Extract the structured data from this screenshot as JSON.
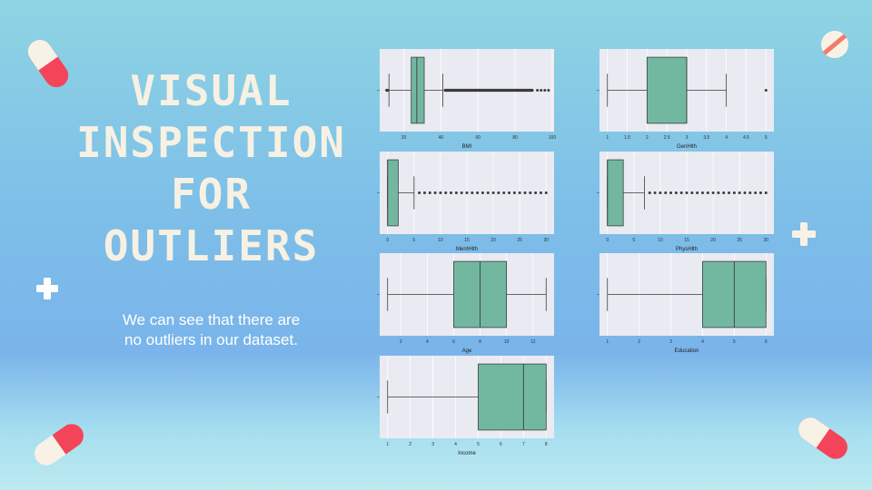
{
  "slide": {
    "title_lines": [
      "VISUAL",
      "INSPECTION",
      "FOR",
      "OUTLIERS"
    ],
    "subtitle_lines": [
      "We can see that there are",
      "no outliers in our dataset."
    ]
  },
  "colors": {
    "box_fill": "#72b8a0",
    "plot_bg": "#eaeaf2",
    "grid": "#ffffff",
    "line": "#3d3d3d"
  },
  "chart_data": [
    {
      "type": "box",
      "xlabel": "BMI",
      "xlim": [
        7,
        101
      ],
      "ticks": [
        20,
        40,
        60,
        80,
        100
      ],
      "whisker_low": 12,
      "q1": 24,
      "median": 27,
      "q3": 31,
      "whisker_high": 41,
      "outliers_dense": [
        41.5,
        90
      ],
      "outliers": [
        [
          10,
          12
        ],
        92,
        94,
        96,
        98
      ]
    },
    {
      "type": "box",
      "xlabel": "GenHlth",
      "xlim": [
        0.8,
        5.2
      ],
      "ticks": [
        1.0,
        1.5,
        2.0,
        2.5,
        3.0,
        3.5,
        4.0,
        4.5,
        5.0
      ],
      "whisker_low": 1,
      "q1": 2,
      "median": 3,
      "q3": 3,
      "whisker_high": 4,
      "outliers": [
        5
      ]
    },
    {
      "type": "box",
      "xlabel": "MentHlth",
      "xlim": [
        -1.5,
        31.5
      ],
      "ticks": [
        0,
        5,
        10,
        15,
        20,
        25,
        30
      ],
      "whisker_low": 0,
      "q1": 0,
      "median": 0,
      "q3": 2,
      "whisker_high": 5,
      "outliers": [
        6,
        7,
        8,
        9,
        10,
        11,
        12,
        13,
        14,
        15,
        16,
        17,
        18,
        19,
        20,
        21,
        22,
        23,
        24,
        25,
        26,
        27,
        28,
        29,
        30
      ]
    },
    {
      "type": "box",
      "xlabel": "PhysHlth",
      "xlim": [
        -1.5,
        31.5
      ],
      "ticks": [
        0,
        5,
        10,
        15,
        20,
        25,
        30
      ],
      "whisker_low": 0,
      "q1": 0,
      "median": 0,
      "q3": 3,
      "whisker_high": 7,
      "outliers": [
        8,
        9,
        10,
        11,
        12,
        13,
        14,
        15,
        16,
        17,
        18,
        19,
        20,
        21,
        22,
        23,
        24,
        25,
        26,
        27,
        28,
        29,
        30
      ]
    },
    {
      "type": "box",
      "xlabel": "Age",
      "xlim": [
        0.4,
        13.6
      ],
      "ticks": [
        2,
        4,
        6,
        8,
        10,
        12
      ],
      "whisker_low": 1,
      "q1": 6,
      "median": 8,
      "q3": 10,
      "whisker_high": 13,
      "outliers": []
    },
    {
      "type": "box",
      "xlabel": "Education",
      "xlim": [
        0.75,
        6.25
      ],
      "ticks": [
        1,
        2,
        3,
        4,
        5,
        6
      ],
      "whisker_low": 1,
      "q1": 4,
      "median": 5,
      "q3": 6,
      "whisker_high": 6,
      "outliers": []
    },
    {
      "type": "box",
      "xlabel": "Income",
      "xlim": [
        0.65,
        8.35
      ],
      "ticks": [
        1,
        2,
        3,
        4,
        5,
        6,
        7,
        8
      ],
      "whisker_low": 1,
      "q1": 5,
      "median": 7,
      "q3": 8,
      "whisker_high": 8,
      "outliers": []
    }
  ]
}
